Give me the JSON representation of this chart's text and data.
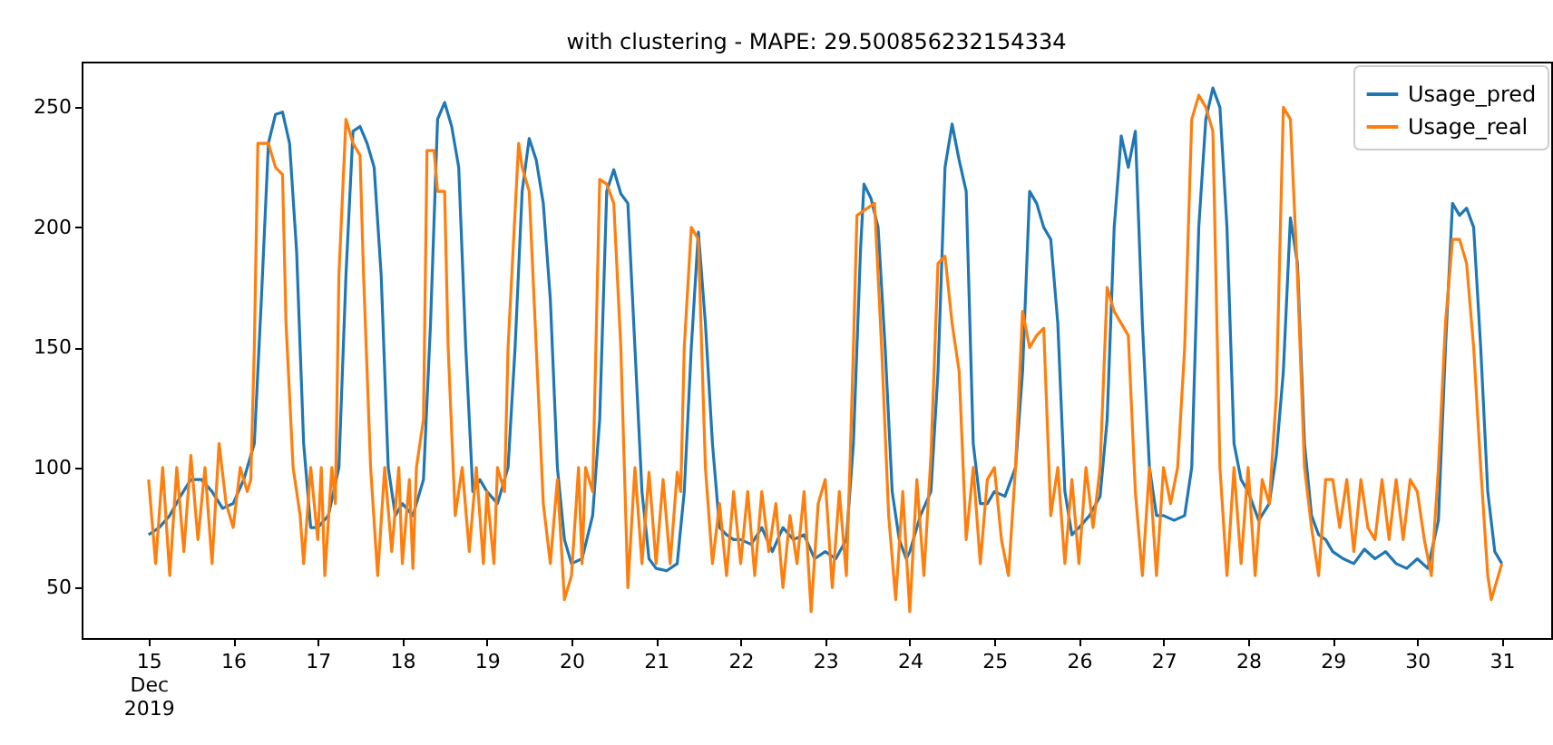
{
  "chart_data": {
    "type": "line",
    "title": "with clustering - MAPE: 29.500856232154334",
    "xlim": [
      "2019-12-14T05:00",
      "2019-12-31T14:00"
    ],
    "xticks": [
      {
        "value": "2019-12-15",
        "label": "15\nDec\n2019"
      },
      {
        "value": "2019-12-16",
        "label": "16"
      },
      {
        "value": "2019-12-17",
        "label": "17"
      },
      {
        "value": "2019-12-18",
        "label": "18"
      },
      {
        "value": "2019-12-19",
        "label": "19"
      },
      {
        "value": "2019-12-20",
        "label": "20"
      },
      {
        "value": "2019-12-21",
        "label": "21"
      },
      {
        "value": "2019-12-22",
        "label": "22"
      },
      {
        "value": "2019-12-23",
        "label": "23"
      },
      {
        "value": "2019-12-24",
        "label": "24"
      },
      {
        "value": "2019-12-25",
        "label": "25"
      },
      {
        "value": "2019-12-26",
        "label": "26"
      },
      {
        "value": "2019-12-27",
        "label": "27"
      },
      {
        "value": "2019-12-28",
        "label": "28"
      },
      {
        "value": "2019-12-29",
        "label": "29"
      },
      {
        "value": "2019-12-30",
        "label": "30"
      },
      {
        "value": "2019-12-31",
        "label": "31"
      }
    ],
    "ylim": [
      29,
      269
    ],
    "yticks": [
      50,
      100,
      150,
      200,
      250
    ],
    "grid": false,
    "legend": "top right",
    "line_style": "solid",
    "marker": "none",
    "series": [
      {
        "name": "Usage_pred",
        "color": "#1f77b4",
        "x": [
          "2019-12-15T00:00",
          "2019-12-15T03:00",
          "2019-12-15T06:00",
          "2019-12-15T09:00",
          "2019-12-15T12:00",
          "2019-12-15T15:00",
          "2019-12-15T18:00",
          "2019-12-15T21:00",
          "2019-12-16T00:00",
          "2019-12-16T03:00",
          "2019-12-16T06:00",
          "2019-12-16T08:00",
          "2019-12-16T10:00",
          "2019-12-16T12:00",
          "2019-12-16T14:00",
          "2019-12-16T16:00",
          "2019-12-16T18:00",
          "2019-12-16T20:00",
          "2019-12-16T22:00",
          "2019-12-17T00:00",
          "2019-12-17T03:00",
          "2019-12-17T06:00",
          "2019-12-17T08:00",
          "2019-12-17T10:00",
          "2019-12-17T12:00",
          "2019-12-17T14:00",
          "2019-12-17T16:00",
          "2019-12-17T18:00",
          "2019-12-17T20:00",
          "2019-12-17T22:00",
          "2019-12-18T00:00",
          "2019-12-18T03:00",
          "2019-12-18T06:00",
          "2019-12-18T08:00",
          "2019-12-18T10:00",
          "2019-12-18T12:00",
          "2019-12-18T14:00",
          "2019-12-18T16:00",
          "2019-12-18T18:00",
          "2019-12-18T20:00",
          "2019-12-18T22:00",
          "2019-12-19T00:00",
          "2019-12-19T03:00",
          "2019-12-19T06:00",
          "2019-12-19T08:00",
          "2019-12-19T10:00",
          "2019-12-19T12:00",
          "2019-12-19T14:00",
          "2019-12-19T16:00",
          "2019-12-19T18:00",
          "2019-12-19T20:00",
          "2019-12-19T22:00",
          "2019-12-20T00:00",
          "2019-12-20T03:00",
          "2019-12-20T06:00",
          "2019-12-20T08:00",
          "2019-12-20T10:00",
          "2019-12-20T12:00",
          "2019-12-20T14:00",
          "2019-12-20T16:00",
          "2019-12-20T18:00",
          "2019-12-20T20:00",
          "2019-12-20T22:00",
          "2019-12-21T00:00",
          "2019-12-21T03:00",
          "2019-12-21T06:00",
          "2019-12-21T08:00",
          "2019-12-21T10:00",
          "2019-12-21T12:00",
          "2019-12-21T14:00",
          "2019-12-21T16:00",
          "2019-12-21T18:00",
          "2019-12-21T20:00",
          "2019-12-21T22:00",
          "2019-12-22T00:00",
          "2019-12-22T03:00",
          "2019-12-22T06:00",
          "2019-12-22T09:00",
          "2019-12-22T12:00",
          "2019-12-22T15:00",
          "2019-12-22T18:00",
          "2019-12-22T21:00",
          "2019-12-23T00:00",
          "2019-12-23T03:00",
          "2019-12-23T06:00",
          "2019-12-23T08:00",
          "2019-12-23T10:00",
          "2019-12-23T11:00",
          "2019-12-23T13:00",
          "2019-12-23T15:00",
          "2019-12-23T17:00",
          "2019-12-23T19:00",
          "2019-12-23T21:00",
          "2019-12-23T23:00",
          "2019-12-24T00:00",
          "2019-12-24T03:00",
          "2019-12-24T06:00",
          "2019-12-24T08:00",
          "2019-12-24T10:00",
          "2019-12-24T12:00",
          "2019-12-24T14:00",
          "2019-12-24T16:00",
          "2019-12-24T18:00",
          "2019-12-24T20:00",
          "2019-12-24T22:00",
          "2019-12-25T00:00",
          "2019-12-25T03:00",
          "2019-12-25T06:00",
          "2019-12-25T08:00",
          "2019-12-25T10:00",
          "2019-12-25T12:00",
          "2019-12-25T14:00",
          "2019-12-25T16:00",
          "2019-12-25T18:00",
          "2019-12-25T20:00",
          "2019-12-25T22:00",
          "2019-12-26T00:00",
          "2019-12-26T03:00",
          "2019-12-26T06:00",
          "2019-12-26T08:00",
          "2019-12-26T10:00",
          "2019-12-26T12:00",
          "2019-12-26T14:00",
          "2019-12-26T16:00",
          "2019-12-26T18:00",
          "2019-12-26T20:00",
          "2019-12-26T22:00",
          "2019-12-27T00:00",
          "2019-12-27T03:00",
          "2019-12-27T06:00",
          "2019-12-27T08:00",
          "2019-12-27T10:00",
          "2019-12-27T12:00",
          "2019-12-27T14:00",
          "2019-12-27T16:00",
          "2019-12-27T18:00",
          "2019-12-27T20:00",
          "2019-12-27T22:00",
          "2019-12-28T00:00",
          "2019-12-28T03:00",
          "2019-12-28T06:00",
          "2019-12-28T08:00",
          "2019-12-28T10:00",
          "2019-12-28T12:00",
          "2019-12-28T14:00",
          "2019-12-28T16:00",
          "2019-12-28T18:00",
          "2019-12-28T20:00",
          "2019-12-28T22:00",
          "2019-12-29T00:00",
          "2019-12-29T03:00",
          "2019-12-29T06:00",
          "2019-12-29T09:00",
          "2019-12-29T12:00",
          "2019-12-29T15:00",
          "2019-12-29T18:00",
          "2019-12-29T21:00",
          "2019-12-30T00:00",
          "2019-12-30T03:00",
          "2019-12-30T06:00",
          "2019-12-30T08:00",
          "2019-12-30T10:00",
          "2019-12-30T12:00",
          "2019-12-30T14:00",
          "2019-12-30T16:00",
          "2019-12-30T18:00",
          "2019-12-30T20:00",
          "2019-12-30T22:00",
          "2019-12-31T00:00"
        ],
        "values": [
          72,
          75,
          80,
          88,
          95,
          95,
          90,
          83,
          85,
          95,
          110,
          170,
          235,
          247,
          248,
          235,
          190,
          110,
          75,
          75,
          80,
          100,
          180,
          240,
          242,
          235,
          225,
          180,
          100,
          80,
          85,
          80,
          95,
          160,
          245,
          252,
          242,
          225,
          150,
          90,
          95,
          90,
          85,
          100,
          150,
          215,
          237,
          228,
          210,
          170,
          100,
          70,
          60,
          62,
          80,
          120,
          215,
          224,
          214,
          210,
          150,
          90,
          62,
          58,
          57,
          60,
          90,
          150,
          198,
          160,
          110,
          75,
          72,
          70,
          70,
          68,
          75,
          65,
          75,
          70,
          72,
          62,
          65,
          62,
          70,
          110,
          190,
          218,
          212,
          200,
          150,
          90,
          70,
          62,
          65,
          80,
          90,
          140,
          225,
          243,
          228,
          215,
          110,
          85,
          85,
          90,
          88,
          100,
          140,
          215,
          210,
          200,
          195,
          160,
          90,
          72,
          75,
          80,
          88,
          120,
          200,
          238,
          225,
          240,
          160,
          100,
          80,
          80,
          78,
          80,
          100,
          200,
          245,
          258,
          250,
          200,
          110,
          95,
          90,
          78,
          85,
          105,
          140,
          204,
          185,
          110,
          80,
          72,
          70,
          65,
          62,
          60,
          66,
          62,
          65,
          60,
          58,
          62,
          58,
          78,
          150,
          210,
          205,
          208,
          200,
          150,
          90,
          65,
          60
        ]
      },
      {
        "name": "Usage_real",
        "color": "#ff7f0e",
        "x": [
          "2019-12-15T00:00",
          "2019-12-15T02:00",
          "2019-12-15T04:00",
          "2019-12-15T06:00",
          "2019-12-15T08:00",
          "2019-12-15T10:00",
          "2019-12-15T12:00",
          "2019-12-15T14:00",
          "2019-12-15T16:00",
          "2019-12-15T18:00",
          "2019-12-15T20:00",
          "2019-12-15T22:00",
          "2019-12-16T00:00",
          "2019-12-16T02:00",
          "2019-12-16T04:00",
          "2019-12-16T05:00",
          "2019-12-16T06:00",
          "2019-12-16T07:00",
          "2019-12-16T10:00",
          "2019-12-16T12:00",
          "2019-12-16T14:00",
          "2019-12-16T15:00",
          "2019-12-16T17:00",
          "2019-12-16T19:00",
          "2019-12-16T20:00",
          "2019-12-16T22:00",
          "2019-12-17T00:00",
          "2019-12-17T01:00",
          "2019-12-17T02:00",
          "2019-12-17T04:00",
          "2019-12-17T05:00",
          "2019-12-17T06:00",
          "2019-12-17T08:00",
          "2019-12-17T10:00",
          "2019-12-17T12:00",
          "2019-12-17T13:00",
          "2019-12-17T15:00",
          "2019-12-17T17:00",
          "2019-12-17T19:00",
          "2019-12-17T21:00",
          "2019-12-17T23:00",
          "2019-12-18T00:00",
          "2019-12-18T02:00",
          "2019-12-18T03:00",
          "2019-12-18T04:00",
          "2019-12-18T06:00",
          "2019-12-18T07:00",
          "2019-12-18T09:00",
          "2019-12-18T10:00",
          "2019-12-18T12:00",
          "2019-12-18T13:00",
          "2019-12-18T15:00",
          "2019-12-18T17:00",
          "2019-12-18T19:00",
          "2019-12-18T21:00",
          "2019-12-18T23:00",
          "2019-12-19T00:00",
          "2019-12-19T02:00",
          "2019-12-19T03:00",
          "2019-12-19T05:00",
          "2019-12-19T06:00",
          "2019-12-19T09:00",
          "2019-12-19T10:00",
          "2019-12-19T12:00",
          "2019-12-19T14:00",
          "2019-12-19T16:00",
          "2019-12-19T18:00",
          "2019-12-19T20:00",
          "2019-12-19T22:00",
          "2019-12-20T00:00",
          "2019-12-20T02:00",
          "2019-12-20T03:00",
          "2019-12-20T04:00",
          "2019-12-20T06:00",
          "2019-12-20T08:00",
          "2019-12-20T10:00",
          "2019-12-20T12:00",
          "2019-12-20T14:00",
          "2019-12-20T16:00",
          "2019-12-20T18:00",
          "2019-12-20T20:00",
          "2019-12-20T22:00",
          "2019-12-21T00:00",
          "2019-12-21T02:00",
          "2019-12-21T04:00",
          "2019-12-21T06:00",
          "2019-12-21T07:00",
          "2019-12-21T08:00",
          "2019-12-21T10:00",
          "2019-12-21T12:00",
          "2019-12-21T14:00",
          "2019-12-21T16:00",
          "2019-12-21T18:00",
          "2019-12-21T20:00",
          "2019-12-21T22:00",
          "2019-12-22T00:00",
          "2019-12-22T02:00",
          "2019-12-22T04:00",
          "2019-12-22T06:00",
          "2019-12-22T08:00",
          "2019-12-22T10:00",
          "2019-12-22T12:00",
          "2019-12-22T14:00",
          "2019-12-22T16:00",
          "2019-12-22T18:00",
          "2019-12-22T20:00",
          "2019-12-22T22:00",
          "2019-12-23T00:00",
          "2019-12-23T02:00",
          "2019-12-23T04:00",
          "2019-12-23T06:00",
          "2019-12-23T07:00",
          "2019-12-23T08:00",
          "2019-12-23T09:00",
          "2019-12-23T12:00",
          "2019-12-23T14:00",
          "2019-12-23T16:00",
          "2019-12-23T18:00",
          "2019-12-23T20:00",
          "2019-12-23T22:00",
          "2019-12-24T00:00",
          "2019-12-24T02:00",
          "2019-12-24T04:00",
          "2019-12-24T06:00",
          "2019-12-24T08:00",
          "2019-12-24T10:00",
          "2019-12-24T12:00",
          "2019-12-24T14:00",
          "2019-12-24T16:00",
          "2019-12-24T18:00",
          "2019-12-24T20:00",
          "2019-12-24T22:00",
          "2019-12-25T00:00",
          "2019-12-25T02:00",
          "2019-12-25T04:00",
          "2019-12-25T06:00",
          "2019-12-25T08:00",
          "2019-12-25T10:00",
          "2019-12-25T12:00",
          "2019-12-25T14:00",
          "2019-12-25T16:00",
          "2019-12-25T18:00",
          "2019-12-25T20:00",
          "2019-12-25T22:00",
          "2019-12-26T00:00",
          "2019-12-26T02:00",
          "2019-12-26T04:00",
          "2019-12-26T06:00",
          "2019-12-26T08:00",
          "2019-12-26T10:00",
          "2019-12-26T12:00",
          "2019-12-26T14:00",
          "2019-12-26T16:00",
          "2019-12-26T18:00",
          "2019-12-26T20:00",
          "2019-12-26T22:00",
          "2019-12-27T00:00",
          "2019-12-27T02:00",
          "2019-12-27T04:00",
          "2019-12-27T06:00",
          "2019-12-27T08:00",
          "2019-12-27T10:00",
          "2019-12-27T12:00",
          "2019-12-27T14:00",
          "2019-12-27T16:00",
          "2019-12-27T18:00",
          "2019-12-27T20:00",
          "2019-12-27T22:00",
          "2019-12-28T00:00",
          "2019-12-28T02:00",
          "2019-12-28T04:00",
          "2019-12-28T06:00",
          "2019-12-28T08:00",
          "2019-12-28T10:00",
          "2019-12-28T12:00",
          "2019-12-28T14:00",
          "2019-12-28T16:00",
          "2019-12-28T18:00",
          "2019-12-28T20:00",
          "2019-12-28T22:00",
          "2019-12-29T00:00",
          "2019-12-29T02:00",
          "2019-12-29T04:00",
          "2019-12-29T06:00",
          "2019-12-29T08:00",
          "2019-12-29T10:00",
          "2019-12-29T12:00",
          "2019-12-29T14:00",
          "2019-12-29T16:00",
          "2019-12-29T18:00",
          "2019-12-29T20:00",
          "2019-12-29T22:00",
          "2019-12-30T00:00",
          "2019-12-30T02:00",
          "2019-12-30T04:00",
          "2019-12-30T06:00",
          "2019-12-30T08:00",
          "2019-12-30T10:00",
          "2019-12-30T12:00",
          "2019-12-30T14:00",
          "2019-12-30T16:00",
          "2019-12-30T18:00",
          "2019-12-30T20:00",
          "2019-12-30T21:00",
          "2019-12-30T22:00",
          "2019-12-30T23:00",
          "2019-12-31T00:00"
        ],
        "values": [
          95,
          60,
          100,
          55,
          100,
          65,
          105,
          70,
          100,
          60,
          110,
          85,
          75,
          100,
          90,
          95,
          150,
          235,
          235,
          225,
          222,
          160,
          100,
          80,
          60,
          100,
          70,
          100,
          55,
          100,
          85,
          180,
          245,
          235,
          230,
          180,
          100,
          55,
          100,
          65,
          100,
          60,
          95,
          58,
          100,
          120,
          232,
          232,
          215,
          215,
          150,
          80,
          100,
          65,
          100,
          60,
          90,
          60,
          100,
          90,
          150,
          235,
          225,
          215,
          150,
          85,
          60,
          95,
          45,
          55,
          100,
          60,
          100,
          90,
          220,
          218,
          210,
          150,
          50,
          100,
          60,
          98,
          60,
          95,
          60,
          98,
          90,
          150,
          200,
          195,
          100,
          60,
          85,
          55,
          90,
          60,
          90,
          55,
          90,
          65,
          85,
          50,
          80,
          60,
          90,
          40,
          85,
          95,
          50,
          90,
          55,
          100,
          150,
          205,
          208,
          210,
          150,
          80,
          45,
          90,
          40,
          95,
          55,
          105,
          185,
          188,
          160,
          140,
          70,
          100,
          60,
          95,
          100,
          70,
          55,
          100,
          165,
          150,
          155,
          158,
          80,
          100,
          60,
          95,
          60,
          100,
          75,
          100,
          175,
          165,
          160,
          155,
          90,
          55,
          100,
          55,
          100,
          85,
          100,
          150,
          245,
          255,
          250,
          240,
          100,
          55,
          100,
          60,
          100,
          55,
          95,
          85,
          130,
          250,
          245,
          180,
          100,
          75,
          55,
          95,
          95,
          75,
          95,
          65,
          95,
          75,
          70,
          95,
          70,
          95,
          70,
          95,
          90,
          70,
          55,
          100,
          160,
          195,
          195,
          185,
          150,
          100,
          55,
          45,
          50,
          55,
          60
        ]
      }
    ]
  }
}
